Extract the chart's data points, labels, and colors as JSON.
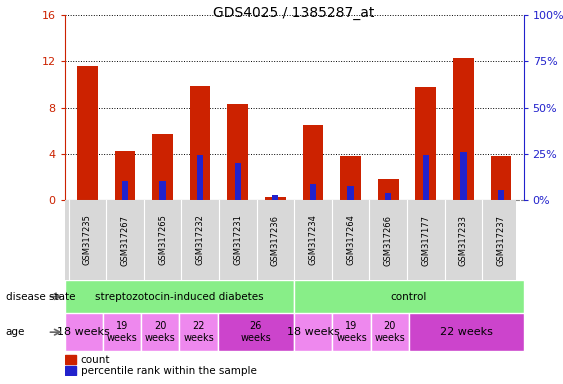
{
  "title": "GDS4025 / 1385287_at",
  "samples": [
    "GSM317235",
    "GSM317267",
    "GSM317265",
    "GSM317232",
    "GSM317231",
    "GSM317236",
    "GSM317234",
    "GSM317264",
    "GSM317266",
    "GSM317177",
    "GSM317233",
    "GSM317237"
  ],
  "count_values": [
    11.6,
    4.2,
    5.7,
    9.9,
    8.3,
    0.2,
    6.5,
    3.8,
    1.8,
    9.8,
    12.3,
    3.8
  ],
  "percentile_values": [
    0,
    10,
    10,
    24,
    20,
    2.5,
    8.75,
    7.5,
    3.75,
    24,
    26,
    5
  ],
  "ylim_left": [
    0,
    16
  ],
  "ylim_right": [
    0,
    100
  ],
  "yticks_left": [
    0,
    4,
    8,
    12,
    16
  ],
  "ytick_labels_left": [
    "0",
    "4",
    "8",
    "12",
    "16"
  ],
  "yticks_right": [
    0,
    25,
    50,
    75,
    100
  ],
  "ytick_labels_right": [
    "0%",
    "25%",
    "50%",
    "75%",
    "100%"
  ],
  "bar_color_count": "#cc2200",
  "bar_color_pct": "#2222cc",
  "bar_width": 0.55,
  "disease_blocks": [
    {
      "label": "streptozotocin-induced diabetes",
      "start": 0,
      "end": 6,
      "color": "#88ee88"
    },
    {
      "label": "control",
      "start": 6,
      "end": 12,
      "color": "#88ee88"
    }
  ],
  "age_groups": [
    {
      "label": "18 weeks",
      "start": 0,
      "end": 1,
      "color": "#ee88ee",
      "fontsize": 8
    },
    {
      "label": "19\nweeks",
      "start": 1,
      "end": 2,
      "color": "#ee88ee",
      "fontsize": 7
    },
    {
      "label": "20\nweeks",
      "start": 2,
      "end": 3,
      "color": "#ee88ee",
      "fontsize": 7
    },
    {
      "label": "22\nweeks",
      "start": 3,
      "end": 4,
      "color": "#ee88ee",
      "fontsize": 7
    },
    {
      "label": "26\nweeks",
      "start": 4,
      "end": 6,
      "color": "#cc44cc",
      "fontsize": 7
    },
    {
      "label": "18 weeks",
      "start": 6,
      "end": 7,
      "color": "#ee88ee",
      "fontsize": 8
    },
    {
      "label": "19\nweeks",
      "start": 7,
      "end": 8,
      "color": "#ee88ee",
      "fontsize": 7
    },
    {
      "label": "20\nweeks",
      "start": 8,
      "end": 9,
      "color": "#ee88ee",
      "fontsize": 7
    },
    {
      "label": "22 weeks",
      "start": 9,
      "end": 12,
      "color": "#cc44cc",
      "fontsize": 8
    }
  ],
  "legend_count_label": "count",
  "legend_pct_label": "percentile rank within the sample",
  "axis_left_color": "#cc2200",
  "axis_right_color": "#2222cc",
  "fig_bg_color": "#ffffff",
  "plot_bg_color": "#ffffff",
  "sample_label_bg": "#d8d8d8",
  "ds_label": "disease state",
  "age_label": "age"
}
